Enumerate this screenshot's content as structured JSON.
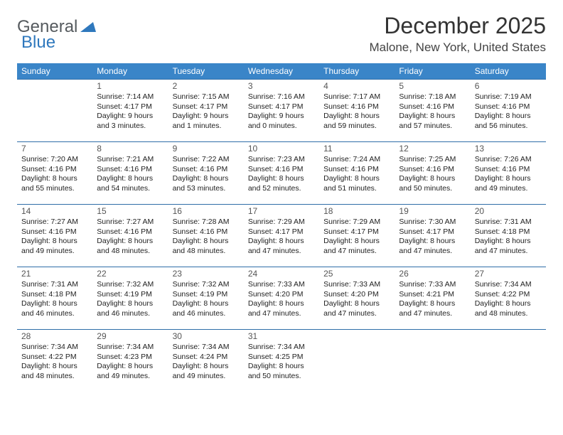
{
  "logo": {
    "part1": "General",
    "part2": "Blue"
  },
  "title": "December 2025",
  "location": "Malone, New York, United States",
  "day_headers": [
    "Sunday",
    "Monday",
    "Tuesday",
    "Wednesday",
    "Thursday",
    "Friday",
    "Saturday"
  ],
  "header_bg": "#3a85c8",
  "header_text": "#ffffff",
  "rule_color": "#2f6ea8",
  "weeks": [
    [
      null,
      {
        "n": "1",
        "sr": "7:14 AM",
        "ss": "4:17 PM",
        "d1": "9 hours",
        "d2": "and 3 minutes."
      },
      {
        "n": "2",
        "sr": "7:15 AM",
        "ss": "4:17 PM",
        "d1": "9 hours",
        "d2": "and 1 minutes."
      },
      {
        "n": "3",
        "sr": "7:16 AM",
        "ss": "4:17 PM",
        "d1": "9 hours",
        "d2": "and 0 minutes."
      },
      {
        "n": "4",
        "sr": "7:17 AM",
        "ss": "4:16 PM",
        "d1": "8 hours",
        "d2": "and 59 minutes."
      },
      {
        "n": "5",
        "sr": "7:18 AM",
        "ss": "4:16 PM",
        "d1": "8 hours",
        "d2": "and 57 minutes."
      },
      {
        "n": "6",
        "sr": "7:19 AM",
        "ss": "4:16 PM",
        "d1": "8 hours",
        "d2": "and 56 minutes."
      }
    ],
    [
      {
        "n": "7",
        "sr": "7:20 AM",
        "ss": "4:16 PM",
        "d1": "8 hours",
        "d2": "and 55 minutes."
      },
      {
        "n": "8",
        "sr": "7:21 AM",
        "ss": "4:16 PM",
        "d1": "8 hours",
        "d2": "and 54 minutes."
      },
      {
        "n": "9",
        "sr": "7:22 AM",
        "ss": "4:16 PM",
        "d1": "8 hours",
        "d2": "and 53 minutes."
      },
      {
        "n": "10",
        "sr": "7:23 AM",
        "ss": "4:16 PM",
        "d1": "8 hours",
        "d2": "and 52 minutes."
      },
      {
        "n": "11",
        "sr": "7:24 AM",
        "ss": "4:16 PM",
        "d1": "8 hours",
        "d2": "and 51 minutes."
      },
      {
        "n": "12",
        "sr": "7:25 AM",
        "ss": "4:16 PM",
        "d1": "8 hours",
        "d2": "and 50 minutes."
      },
      {
        "n": "13",
        "sr": "7:26 AM",
        "ss": "4:16 PM",
        "d1": "8 hours",
        "d2": "and 49 minutes."
      }
    ],
    [
      {
        "n": "14",
        "sr": "7:27 AM",
        "ss": "4:16 PM",
        "d1": "8 hours",
        "d2": "and 49 minutes."
      },
      {
        "n": "15",
        "sr": "7:27 AM",
        "ss": "4:16 PM",
        "d1": "8 hours",
        "d2": "and 48 minutes."
      },
      {
        "n": "16",
        "sr": "7:28 AM",
        "ss": "4:16 PM",
        "d1": "8 hours",
        "d2": "and 48 minutes."
      },
      {
        "n": "17",
        "sr": "7:29 AM",
        "ss": "4:17 PM",
        "d1": "8 hours",
        "d2": "and 47 minutes."
      },
      {
        "n": "18",
        "sr": "7:29 AM",
        "ss": "4:17 PM",
        "d1": "8 hours",
        "d2": "and 47 minutes."
      },
      {
        "n": "19",
        "sr": "7:30 AM",
        "ss": "4:17 PM",
        "d1": "8 hours",
        "d2": "and 47 minutes."
      },
      {
        "n": "20",
        "sr": "7:31 AM",
        "ss": "4:18 PM",
        "d1": "8 hours",
        "d2": "and 47 minutes."
      }
    ],
    [
      {
        "n": "21",
        "sr": "7:31 AM",
        "ss": "4:18 PM",
        "d1": "8 hours",
        "d2": "and 46 minutes."
      },
      {
        "n": "22",
        "sr": "7:32 AM",
        "ss": "4:19 PM",
        "d1": "8 hours",
        "d2": "and 46 minutes."
      },
      {
        "n": "23",
        "sr": "7:32 AM",
        "ss": "4:19 PM",
        "d1": "8 hours",
        "d2": "and 46 minutes."
      },
      {
        "n": "24",
        "sr": "7:33 AM",
        "ss": "4:20 PM",
        "d1": "8 hours",
        "d2": "and 47 minutes."
      },
      {
        "n": "25",
        "sr": "7:33 AM",
        "ss": "4:20 PM",
        "d1": "8 hours",
        "d2": "and 47 minutes."
      },
      {
        "n": "26",
        "sr": "7:33 AM",
        "ss": "4:21 PM",
        "d1": "8 hours",
        "d2": "and 47 minutes."
      },
      {
        "n": "27",
        "sr": "7:34 AM",
        "ss": "4:22 PM",
        "d1": "8 hours",
        "d2": "and 48 minutes."
      }
    ],
    [
      {
        "n": "28",
        "sr": "7:34 AM",
        "ss": "4:22 PM",
        "d1": "8 hours",
        "d2": "and 48 minutes."
      },
      {
        "n": "29",
        "sr": "7:34 AM",
        "ss": "4:23 PM",
        "d1": "8 hours",
        "d2": "and 49 minutes."
      },
      {
        "n": "30",
        "sr": "7:34 AM",
        "ss": "4:24 PM",
        "d1": "8 hours",
        "d2": "and 49 minutes."
      },
      {
        "n": "31",
        "sr": "7:34 AM",
        "ss": "4:25 PM",
        "d1": "8 hours",
        "d2": "and 50 minutes."
      },
      null,
      null,
      null
    ]
  ],
  "labels": {
    "sunrise": "Sunrise: ",
    "sunset": "Sunset: ",
    "daylight": "Daylight: "
  }
}
